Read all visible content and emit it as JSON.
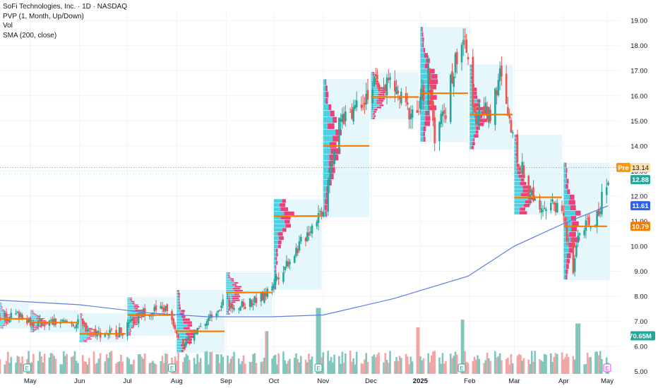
{
  "legend": {
    "symbol_title": "SoFi Technologies, Inc. · 1D · NASDAQ",
    "indicator_pvp": "PVP (1, Month, Up/Down)",
    "indicator_vol": "Vol",
    "indicator_sma": "SMA (200, close)"
  },
  "colors": {
    "up": "#26a69a",
    "down": "#ef5350",
    "vol_up": "#80c6bd",
    "vol_down": "#f2a5a5",
    "sma": "#5b7fe0",
    "poc": "#f57c00",
    "profile_up": "#4dd0e1",
    "profile_down": "#ec407a",
    "profile_bg": "#e6f7fb",
    "premarket_line": "#ff9800",
    "last_price": "#26a69a",
    "sma_badge": "#2962ff",
    "vol_badge": "#26a69a"
  },
  "price_badges": {
    "premarket_label": "Pre",
    "premarket_value": "13.14",
    "last_value": "12.88",
    "sma_value": "11.61",
    "poc_value": "10.79",
    "volume_value": "70.65M"
  },
  "chart_data": {
    "type": "candlestick",
    "title": "SoFi Technologies, Inc. · 1D · NASDAQ",
    "y_axis": {
      "ticks": [
        "19.00",
        "18.00",
        "17.00",
        "16.00",
        "15.00",
        "14.00",
        "13.00",
        "12.00",
        "11.00",
        "10.00",
        "9.00",
        "8.00",
        "7.00",
        "6.00",
        "5.00"
      ],
      "range": [
        4.9,
        19.4
      ]
    },
    "x_axis": {
      "labels": [
        "May",
        "Jun",
        "Jul",
        "Aug",
        "Sep",
        "Oct",
        "Nov",
        "Dec",
        "2025",
        "Feb",
        "Mar",
        "Apr",
        "May"
      ],
      "bold_labels": [
        "2025"
      ],
      "range": [
        "2024-04-12",
        "2025-05-01"
      ]
    },
    "close_path": [
      [
        "2024-04-12",
        7.1
      ],
      [
        "2024-04-25",
        7.3
      ],
      [
        "2024-05-03",
        6.9
      ],
      [
        "2024-05-17",
        6.95
      ],
      [
        "2024-05-31",
        6.9
      ],
      [
        "2024-06-14",
        6.5
      ],
      [
        "2024-06-28",
        6.6
      ],
      [
        "2024-07-12",
        7.4
      ],
      [
        "2024-07-26",
        7.5
      ],
      [
        "2024-08-05",
        6.1
      ],
      [
        "2024-08-16",
        6.7
      ],
      [
        "2024-08-30",
        7.8
      ],
      [
        "2024-09-11",
        7.6
      ],
      [
        "2024-09-25",
        8.0
      ],
      [
        "2024-10-04",
        8.9
      ],
      [
        "2024-10-18",
        10.1
      ],
      [
        "2024-10-28",
        11.2
      ],
      [
        "2024-11-01",
        11.5
      ],
      [
        "2024-11-06",
        13.4
      ],
      [
        "2024-11-12",
        15.0
      ],
      [
        "2024-11-22",
        15.7
      ],
      [
        "2024-12-03",
        16.4
      ],
      [
        "2024-12-13",
        16.5
      ],
      [
        "2024-12-24",
        15.4
      ],
      [
        "2024-12-31",
        15.4
      ],
      [
        "2025-01-06",
        16.9
      ],
      [
        "2025-01-10",
        14.5
      ],
      [
        "2025-01-17",
        15.5
      ],
      [
        "2025-01-24",
        17.7
      ],
      [
        "2025-01-28",
        18.3
      ],
      [
        "2025-02-05",
        15.2
      ],
      [
        "2025-02-14",
        15.4
      ],
      [
        "2025-02-20",
        16.8
      ],
      [
        "2025-02-28",
        14.2
      ],
      [
        "2025-03-10",
        12.2
      ],
      [
        "2025-03-20",
        11.6
      ],
      [
        "2025-03-31",
        11.6
      ],
      [
        "2025-04-04",
        10.0
      ],
      [
        "2025-04-07",
        9.0
      ],
      [
        "2025-04-10",
        10.5
      ],
      [
        "2025-04-22",
        11.1
      ],
      [
        "2025-04-29",
        12.88
      ]
    ],
    "series": [
      {
        "name": "SMA (200, close)",
        "points": [
          [
            "2024-04-12",
            7.84
          ],
          [
            "2024-06-01",
            7.66
          ],
          [
            "2024-07-15",
            7.33
          ],
          [
            "2024-08-20",
            7.18
          ],
          [
            "2024-09-30",
            7.18
          ],
          [
            "2024-11-01",
            7.25
          ],
          [
            "2024-12-15",
            7.9
          ],
          [
            "2025-01-31",
            8.8
          ],
          [
            "2025-03-01",
            10.0
          ],
          [
            "2025-04-01",
            10.9
          ],
          [
            "2025-04-29",
            11.61
          ]
        ]
      }
    ],
    "volume_profile_poc": [
      {
        "start": "2024-04-12",
        "end": "2024-04-30",
        "price": 7.1
      },
      {
        "start": "2024-05-01",
        "end": "2024-05-31",
        "price": 6.95
      },
      {
        "start": "2024-06-01",
        "end": "2024-06-30",
        "price": 6.5
      },
      {
        "start": "2024-07-01",
        "end": "2024-07-31",
        "price": 7.25
      },
      {
        "start": "2024-08-01",
        "end": "2024-08-31",
        "price": 6.6
      },
      {
        "start": "2024-09-01",
        "end": "2024-09-30",
        "price": 8.15
      },
      {
        "start": "2024-10-01",
        "end": "2024-10-31",
        "price": 11.2
      },
      {
        "start": "2024-11-01",
        "end": "2024-11-30",
        "price": 14.0
      },
      {
        "start": "2024-12-01",
        "end": "2024-12-31",
        "price": 15.95
      },
      {
        "start": "2025-01-01",
        "end": "2025-01-31",
        "price": 16.1
      },
      {
        "start": "2025-02-01",
        "end": "2025-02-28",
        "price": 15.25
      },
      {
        "start": "2025-03-01",
        "end": "2025-03-31",
        "price": 11.95
      },
      {
        "start": "2025-04-01",
        "end": "2025-04-30",
        "price": 10.79
      }
    ],
    "volume_spikes": [
      [
        "2024-10-29",
        0.85
      ],
      [
        "2025-01-27",
        0.7
      ],
      [
        "2024-12-30",
        0.6
      ],
      [
        "2025-04-10",
        0.65
      ],
      [
        "2024-09-27",
        0.55
      ]
    ],
    "earnings_markers": [
      "2024-04-29",
      "2024-07-29",
      "2024-10-29",
      "2025-01-27",
      "2025-04-29"
    ],
    "earnings_label": "E",
    "premarket_price": 13.14,
    "last_price": 12.88
  }
}
